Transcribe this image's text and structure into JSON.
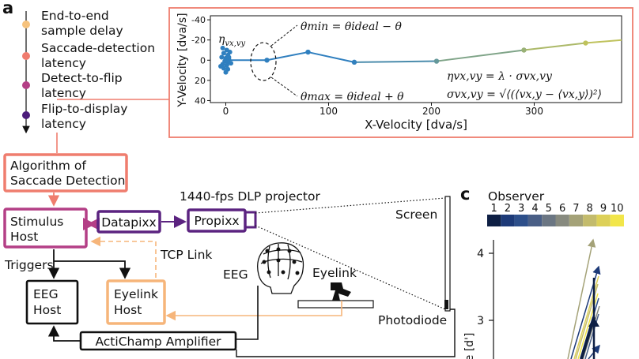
{
  "panel_a": {
    "label": "a",
    "latencies": [
      {
        "text": [
          "End-to-end",
          "sample delay"
        ],
        "color": "#f6c27c"
      },
      {
        "text": [
          "Saccade-detection",
          "latency"
        ],
        "color": "#f07b6e"
      },
      {
        "text": [
          "Detect-to-flip",
          "latency"
        ],
        "color": "#b43f86"
      },
      {
        "text": [
          "Flip-to-display",
          "latency"
        ],
        "color": "#4b1c7a"
      }
    ],
    "plot": {
      "xlabel": "X-Velocity [dva/s]",
      "ylabel": "Y-Velocity [dva/s]",
      "xticks": [
        "0",
        "100",
        "200",
        "300"
      ],
      "yticks": [
        "-40",
        "-20",
        "0",
        "20",
        "40"
      ],
      "eta_label": "η",
      "eta_sub": "vx,vy",
      "theta_min": "θmin = θideal − θ",
      "theta_max": "θmax = θideal + θ",
      "eq_eta": "ηvx,vy = λ · σvx,vy",
      "eq_sigma": "σvx,vy = √⟨(⟨vx,y − ⟨vx,y⟩)²⟩"
    },
    "blocks": {
      "algorithm": [
        "Algorithm of",
        "Saccade Detection"
      ],
      "stimulus_host": [
        "Stimulus",
        "Host"
      ],
      "datapixx": "Datapixx",
      "propixx": "Propixx",
      "projector": "1440-fps DLP projector",
      "screen": "Screen",
      "triggers": "Triggers",
      "tcp_link": "TCP Link",
      "eeg": "EEG",
      "eyelink": "Eyelink",
      "eeg_host": [
        "EEG",
        "Host"
      ],
      "eyelink_host": [
        "Eyelink",
        "Host"
      ],
      "amplifier": "ActiChamp Amplifier",
      "photodiode": "Photodiode"
    },
    "colors": {
      "salmon": "#ef7d6e",
      "magenta": "#b43f86",
      "purple": "#5b2380",
      "orange": "#f6b57a",
      "blue": "#2f7fbf",
      "olive": "#bfc25c"
    }
  },
  "panel_c": {
    "label": "c",
    "legend_title": "Observer",
    "observers": [
      "1",
      "2",
      "3",
      "4",
      "5",
      "6",
      "7",
      "8",
      "9",
      "10"
    ],
    "palette": [
      "#0e1f44",
      "#1d3a78",
      "#2d4f8a",
      "#4a5f86",
      "#6b7683",
      "#878a7f",
      "#a4a278",
      "#c3bb6c",
      "#ddd058",
      "#f2e64a"
    ],
    "yticks": [
      "4",
      "3"
    ],
    "ylabel": "e [d']"
  },
  "chart_data": {
    "type": "line",
    "xlabel": "X-Velocity [dva/s]",
    "ylabel": "Y-Velocity [dva/s]",
    "xlim": [
      -15,
      385
    ],
    "ylim": [
      42,
      -44
    ],
    "x": [
      0,
      40,
      80,
      125,
      205,
      290,
      350
    ],
    "y": [
      0,
      0,
      -8,
      2,
      1,
      -10,
      -17
    ]
  }
}
